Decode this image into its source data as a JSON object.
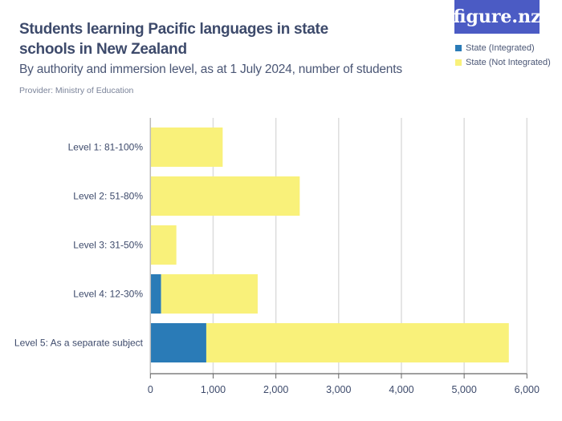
{
  "title": "Students learning Pacific languages in state schools in New Zealand",
  "subtitle": "By authority and immersion level, as at 1 July 2024, number of students",
  "provider": "Provider: Ministry of Education",
  "logo": "figure.nz",
  "chart_data": {
    "type": "bar",
    "orientation": "horizontal",
    "stacked": true,
    "categories": [
      "Level 1: 81-100%",
      "Level 2: 51-80%",
      "Level 3: 31-50%",
      "Level 4: 12-30%",
      "Level 5: As a separate subject"
    ],
    "series": [
      {
        "name": "State (Integrated)",
        "color": "#2a7bb7",
        "values": [
          0,
          0,
          0,
          171,
          891
        ]
      },
      {
        "name": "State (Not Integrated)",
        "color": "#f9f17a",
        "values": [
          1152,
          2380,
          414,
          1539,
          4821
        ]
      }
    ],
    "xlim": [
      0,
      6000
    ],
    "xticks": [
      "0",
      "1,000",
      "2,000",
      "3,000",
      "4,000",
      "5,000",
      "6,000"
    ],
    "grid": true,
    "legend": "top-right"
  }
}
